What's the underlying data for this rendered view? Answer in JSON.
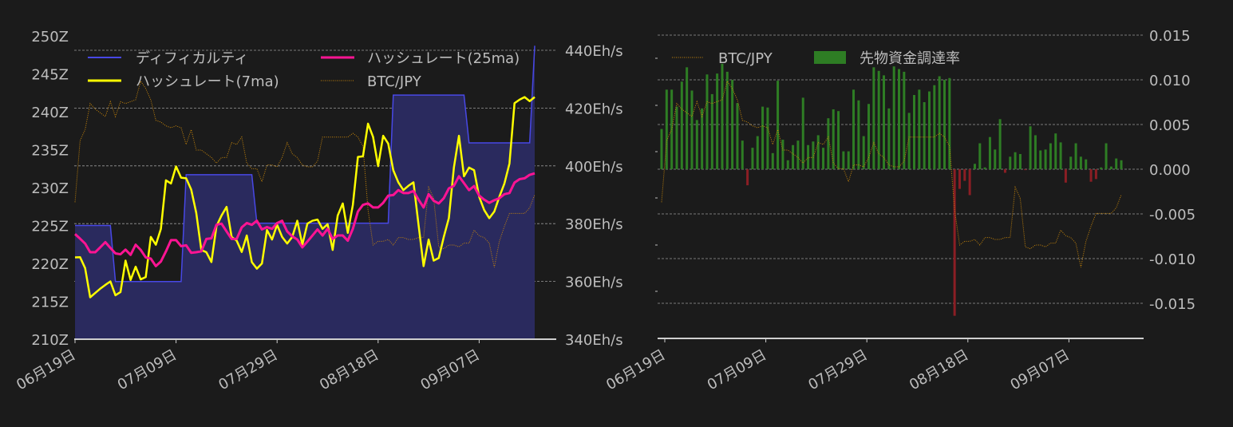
{
  "colors": {
    "background": "#1b1b1b",
    "difficulty_line": "#4848e6",
    "difficulty_fill": "#2a2a5e",
    "hashrate_7ma": "#ffff00",
    "hashrate_25ma": "#ff1493",
    "btc_jpy": "#c8860a",
    "funding_positive": "#2e7d24",
    "funding_negative": "#8b1e24",
    "text": "#bdbdbd"
  },
  "chart_data": [
    {
      "type": "line",
      "legend": {
        "placement": "top",
        "items": [
          "ディフィカルティ",
          "ハッシュレート(25ma)",
          "ハッシュレート(7ma)",
          "BTC/JPY"
        ]
      },
      "grid": true,
      "x_tick_labels": [
        "06月19日",
        "07月09日",
        "07月29日",
        "08月18日",
        "09月07日"
      ],
      "x_tick_dates": [
        "06-19",
        "07-09",
        "07-29",
        "08-18",
        "09-07"
      ],
      "y_left": {
        "ticks": [
          "210Z",
          "215Z",
          "220Z",
          "225Z",
          "230Z",
          "235Z",
          "240Z",
          "245Z",
          "250Z"
        ],
        "ylim": [
          210,
          250
        ],
        "unit": "Z"
      },
      "y_right": {
        "ticks": [
          "340Eh/s",
          "360Eh/s",
          "380Eh/s",
          "400Eh/s",
          "420Eh/s",
          "440Eh/s"
        ],
        "ylim": [
          340,
          440
        ],
        "unit": "Eh/s"
      },
      "x": [
        "06-19",
        "06-20",
        "06-21",
        "06-22",
        "06-23",
        "06-24",
        "06-25",
        "06-26",
        "06-27",
        "06-28",
        "06-29",
        "06-30",
        "07-01",
        "07-02",
        "07-03",
        "07-04",
        "07-05",
        "07-06",
        "07-07",
        "07-08",
        "07-09",
        "07-10",
        "07-11",
        "07-12",
        "07-13",
        "07-14",
        "07-15",
        "07-16",
        "07-17",
        "07-18",
        "07-19",
        "07-20",
        "07-21",
        "07-22",
        "07-23",
        "07-24",
        "07-25",
        "07-26",
        "07-27",
        "07-28",
        "07-29",
        "07-30",
        "07-31",
        "08-01",
        "08-02",
        "08-03",
        "08-04",
        "08-05",
        "08-06",
        "08-07",
        "08-08",
        "08-09",
        "08-10",
        "08-11",
        "08-12",
        "08-13",
        "08-14",
        "08-15",
        "08-16",
        "08-17",
        "08-18",
        "08-19",
        "08-20",
        "08-21",
        "08-22",
        "08-23",
        "08-24",
        "08-25",
        "08-26",
        "08-27",
        "08-28",
        "08-29",
        "08-30",
        "08-31",
        "09-01",
        "09-02",
        "09-03",
        "09-04",
        "09-05",
        "09-06",
        "09-07",
        "09-08",
        "09-09",
        "09-10",
        "09-11",
        "09-12",
        "09-13",
        "09-14",
        "09-15",
        "09-16",
        "09-17",
        "09-18"
      ],
      "series": [
        {
          "name": "ディフィカルティ",
          "axis": "left",
          "style": "step-fill",
          "values": [
            225,
            225,
            225,
            225,
            225,
            225,
            225,
            225,
            217.6,
            217.6,
            217.6,
            217.6,
            217.6,
            217.6,
            217.6,
            217.6,
            217.6,
            217.6,
            217.6,
            217.6,
            217.6,
            217.6,
            231.7,
            231.7,
            231.7,
            231.7,
            231.7,
            231.7,
            231.7,
            231.7,
            231.7,
            231.7,
            231.7,
            231.7,
            231.7,
            231.7,
            225.3,
            225.3,
            225.3,
            225.3,
            225.3,
            225.3,
            225.3,
            225.3,
            225.3,
            225.3,
            225.3,
            225.3,
            225.3,
            225.3,
            225.3,
            225.3,
            225.3,
            225.3,
            225.3,
            225.3,
            225.3,
            225.3,
            225.3,
            225.3,
            225.3,
            225.3,
            225.3,
            242.2,
            242.2,
            242.2,
            242.2,
            242.2,
            242.2,
            242.2,
            242.2,
            242.2,
            242.2,
            242.2,
            242.2,
            242.2,
            242.2,
            242.2,
            235.9,
            235.9,
            235.9,
            235.9,
            235.9,
            235.9,
            235.9,
            235.9,
            235.9,
            235.9,
            235.9,
            235.9,
            235.9,
            248.7
          ]
        },
        {
          "name": "ハッシュレート(25ma)",
          "axis": "right",
          "values": [
            376.4,
            374.8,
            373.1,
            370.1,
            370.1,
            371.8,
            373.6,
            371.6,
            369.7,
            369.4,
            371,
            369.2,
            372.7,
            370.9,
            368.3,
            367.9,
            365.3,
            366.9,
            370.4,
            374.3,
            374.3,
            372.2,
            372.5,
            369.9,
            370.1,
            370.4,
            374.7,
            374.9,
            379.6,
            380,
            377.3,
            374.7,
            374.7,
            378.7,
            380.2,
            379.6,
            381,
            378,
            378.8,
            378.2,
            380.2,
            381,
            377.3,
            375.6,
            374.5,
            371.8,
            373.8,
            375.9,
            378,
            375.9,
            378.2,
            374.7,
            375.9,
            375.9,
            374.1,
            378.2,
            384.2,
            386.5,
            387,
            385.6,
            385.6,
            387.2,
            389.7,
            389.9,
            391.6,
            390.6,
            390.6,
            391.3,
            388.3,
            385.6,
            390.2,
            387.9,
            387,
            388.8,
            392.2,
            393.1,
            396.4,
            394,
            391.6,
            393,
            389.7,
            388.3,
            387.2,
            388.1,
            388.8,
            390.2,
            390.6,
            394.2,
            395.4,
            395.7,
            396.9,
            397.4
          ]
        },
        {
          "name": "ハッシュレート(7ma)",
          "axis": "right",
          "values": [
            368.3,
            368.4,
            364.6,
            354.5,
            356,
            357.5,
            358.8,
            360,
            355.2,
            356.3,
            367.2,
            360.5,
            365.1,
            360.7,
            361.5,
            375.4,
            372.7,
            378.2,
            395,
            393.9,
            399.8,
            395.9,
            395.7,
            391.8,
            383.7,
            370.9,
            370.1,
            366.7,
            379.1,
            382.8,
            385.8,
            375.4,
            374.1,
            370.2,
            375.9,
            366.7,
            364.4,
            366.2,
            377.8,
            374.5,
            379.6,
            375.4,
            373.1,
            375.4,
            381,
            372.7,
            380,
            381,
            381.4,
            378.2,
            379.8,
            370.9,
            382.8,
            387,
            376.8,
            386.5,
            403.1,
            403.3,
            414.6,
            410,
            399.9,
            410.4,
            407.7,
            398.5,
            394.3,
            391.6,
            393.1,
            394.3,
            379.6,
            365.3,
            374.5,
            367.2,
            368.1,
            375.4,
            381.9,
            399.4,
            410.4,
            396.4,
            399.4,
            398.5,
            389.3,
            384.7,
            381.9,
            384.2,
            389.3,
            393.9,
            400.8,
            421.7,
            422.9,
            423.8,
            422.4,
            423.8
          ]
        },
        {
          "name": "BTC/JPY",
          "axis": "hidden",
          "style": "dotted",
          "relative_level": [
            0.35,
            0.68,
            0.74,
            0.88,
            0.85,
            0.83,
            0.81,
            0.89,
            0.81,
            0.89,
            0.88,
            0.89,
            0.9,
            1.0,
            0.96,
            0.9,
            0.79,
            0.78,
            0.76,
            0.75,
            0.76,
            0.75,
            0.66,
            0.74,
            0.63,
            0.63,
            0.61,
            0.59,
            0.56,
            0.59,
            0.59,
            0.67,
            0.66,
            0.7,
            0.56,
            0.53,
            0.53,
            0.46,
            0.55,
            0.55,
            0.54,
            0.59,
            0.67,
            0.61,
            0.59,
            0.55,
            0.54,
            0.54,
            0.57,
            0.7,
            0.7,
            0.7,
            0.7,
            0.7,
            0.7,
            0.72,
            0.7,
            0.65,
            0.31,
            0.12,
            0.14,
            0.14,
            0.15,
            0.12,
            0.16,
            0.16,
            0.15,
            0.15,
            0.16,
            0.16,
            0.43,
            0.37,
            0.11,
            0.1,
            0.12,
            0.12,
            0.11,
            0.13,
            0.13,
            0.2,
            0.17,
            0.16,
            0.13,
            0.0,
            0.14,
            0.22,
            0.29,
            0.29,
            0.29,
            0.29,
            0.32,
            0.39
          ]
        }
      ]
    },
    {
      "type": "bar",
      "legend": {
        "placement": "top-left",
        "items": [
          "BTC/JPY",
          "先物資金調達率"
        ]
      },
      "grid": true,
      "x_tick_labels": [
        "06月19日",
        "07月09日",
        "07月29日",
        "08月18日",
        "09月07日"
      ],
      "y_right": {
        "ticks": [
          "0.015",
          "0.010",
          "0.005",
          "0.000",
          "-0.005",
          "-0.010",
          "-0.015"
        ],
        "tick_values": [
          0.015,
          0.01,
          0.005,
          0,
          -0.005,
          -0.01,
          -0.015
        ],
        "ylim": [
          -0.0187,
          0.0165
        ]
      },
      "series": [
        {
          "name": "先物資金調達率",
          "values": [
            0.0045,
            0.0089,
            0.0089,
            0.007,
            0.0098,
            0.0114,
            0.0088,
            0.0055,
            0.0068,
            0.0106,
            0.0084,
            0.0107,
            0.0118,
            0.0109,
            0.01,
            0.0074,
            0.0032,
            -0.0018,
            0.0024,
            0.0037,
            0.007,
            0.0069,
            0.0018,
            0.0099,
            0.0033,
            0.001,
            0.0027,
            0.0032,
            0.008,
            0.0027,
            0.0031,
            0.0038,
            0.0024,
            0.0057,
            0.0067,
            0.0065,
            0.002,
            0.002,
            0.0089,
            0.0077,
            0.0037,
            0.0073,
            0.0114,
            0.011,
            0.0105,
            0.0068,
            0.0115,
            0.0112,
            0.0109,
            0.0063,
            0.0083,
            0.0089,
            0.0075,
            0.0087,
            0.0094,
            0.0104,
            0.01,
            0.0102,
            -0.0164,
            -0.0022,
            -0.0013,
            -0.0029,
            0.0006,
            0.0029,
            0.0002,
            0.0036,
            0.0022,
            0.0056,
            -0.0004,
            0.0014,
            0.0019,
            0.0017,
            -0.0001,
            0.0048,
            0.0038,
            0.0021,
            0.0022,
            0.0029,
            0.004,
            0.003,
            -0.0015,
            0.0014,
            0.0029,
            0.0014,
            0.0011,
            -0.0014,
            -0.0011,
            0.0002,
            0.0029,
            0.0003,
            0.0012,
            0.001
          ]
        },
        {
          "name": "BTC/JPY",
          "axis": "hidden",
          "style": "dotted",
          "same_as": "BTC/JPY"
        }
      ]
    }
  ]
}
